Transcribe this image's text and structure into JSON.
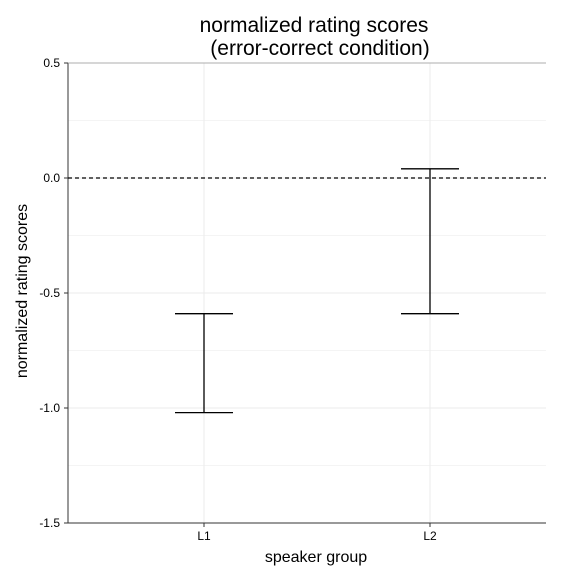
{
  "chart_data": {
    "type": "errorbar",
    "title_line1": "normalized rating scores",
    "title_line2": "(error-correct condition)",
    "xlabel": "speaker group",
    "ylabel": "normalized rating scores",
    "categories": [
      "L1",
      "L2"
    ],
    "intervals": [
      {
        "category": "L1",
        "lower": -1.02,
        "upper": -0.59
      },
      {
        "category": "L2",
        "lower": -0.59,
        "upper": 0.04
      }
    ],
    "ylim": [
      -1.5,
      0.5
    ],
    "yticks": [
      0.5,
      0.0,
      -0.5,
      -1.0,
      -1.5
    ],
    "ytick_labels": [
      "0.5",
      "0.0",
      "-0.5",
      "-1.0",
      "-1.5"
    ],
    "reference_line": 0.0,
    "grid": true,
    "colors": {
      "grid": "#ebebeb",
      "line": "#000000",
      "axis": "#333333"
    }
  }
}
